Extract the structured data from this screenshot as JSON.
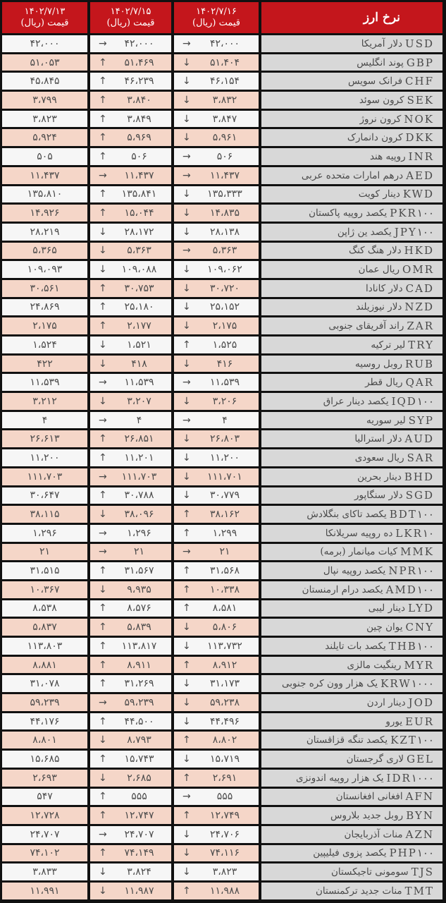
{
  "header": {
    "title": "نرخ ارز",
    "columns": [
      {
        "date": "۱۴۰۲/۷/۱۳",
        "unit": "قیمت (ریال)"
      },
      {
        "date": "۱۴۰۲/۷/۱۵",
        "unit": "قیمت (ریال)"
      },
      {
        "date": "۱۴۰۲/۷/۱۶",
        "unit": "قیمت (ریال)"
      }
    ]
  },
  "colors": {
    "header": "#c4161c",
    "row_alt": "#f5d6c8",
    "row": "#f6f6f6",
    "name_col": "#d8d8d8"
  },
  "rows": [
    {
      "code": "USD",
      "name": "دلار آمریکا",
      "d16": "۴۲،۰۰۰",
      "a16": "→",
      "d15": "۴۲،۰۰۰",
      "a15": "→",
      "d13": "۴۲،۰۰۰"
    },
    {
      "code": "GBP",
      "name": "پوند انگلیس",
      "d16": "۵۱،۴۰۴",
      "a16": "↓",
      "d15": "۵۱،۴۶۹",
      "a15": "↑",
      "d13": "۵۱،۰۵۳"
    },
    {
      "code": "CHF",
      "name": "فرانک سویس",
      "d16": "۴۶،۱۵۴",
      "a16": "↓",
      "d15": "۴۶،۲۳۹",
      "a15": "↑",
      "d13": "۴۵،۸۴۵"
    },
    {
      "code": "SEK",
      "name": "کرون سوئد",
      "d16": "۳،۸۳۲",
      "a16": "↓",
      "d15": "۳،۸۴۰",
      "a15": "↑",
      "d13": "۳،۷۹۹"
    },
    {
      "code": "NOK",
      "name": "کرون نروژ",
      "d16": "۳،۸۴۷",
      "a16": "↓",
      "d15": "۳،۸۴۹",
      "a15": "↑",
      "d13": "۳،۸۲۳"
    },
    {
      "code": "DKK",
      "name": "کرون دانمارک",
      "d16": "۵،۹۶۱",
      "a16": "↓",
      "d15": "۵،۹۶۹",
      "a15": "↑",
      "d13": "۵،۹۲۴"
    },
    {
      "code": "INR",
      "name": "روپیه هند",
      "d16": "۵۰۶",
      "a16": "→",
      "d15": "۵۰۶",
      "a15": "↑",
      "d13": "۵۰۵"
    },
    {
      "code": "AED",
      "name": "درهم امارات متحده عربی",
      "d16": "۱۱،۴۳۷",
      "a16": "→",
      "d15": "۱۱،۴۳۷",
      "a15": "→",
      "d13": "۱۱،۴۳۷"
    },
    {
      "code": "KWD",
      "name": "دینار کویت",
      "d16": "۱۳۵،۳۳۳",
      "a16": "↓",
      "d15": "۱۳۵،۸۴۱",
      "a15": "↑",
      "d13": "۱۳۵،۸۱۰"
    },
    {
      "code": "PKR۱۰۰",
      "name": "یکصد روپیه پاکستان",
      "d16": "۱۴،۸۳۵",
      "a16": "↓",
      "d15": "۱۵،۰۴۴",
      "a15": "↑",
      "d13": "۱۴،۹۲۶"
    },
    {
      "code": "JPY۱۰۰",
      "name": "یکصد ین ژاپن",
      "d16": "۲۸،۱۳۸",
      "a16": "↓",
      "d15": "۲۸،۱۷۲",
      "a15": "↓",
      "d13": "۲۸،۲۱۹"
    },
    {
      "code": "HKD",
      "name": "دلار هنگ کنگ",
      "d16": "۵،۳۶۳",
      "a16": "→",
      "d15": "۵،۳۶۳",
      "a15": "↓",
      "d13": "۵،۳۶۵"
    },
    {
      "code": "OMR",
      "name": "ریال عمان",
      "d16": "۱۰۹،۰۶۲",
      "a16": "↓",
      "d15": "۱۰۹،۰۸۸",
      "a15": "↓",
      "d13": "۱۰۹،۰۹۳"
    },
    {
      "code": "CAD",
      "name": "دلار کانادا",
      "d16": "۳۰،۷۲۰",
      "a16": "↓",
      "d15": "۳۰،۷۵۳",
      "a15": "↑",
      "d13": "۳۰،۵۶۱"
    },
    {
      "code": "NZD",
      "name": "دلار نیوزیلند",
      "d16": "۲۵،۱۵۲",
      "a16": "↓",
      "d15": "۲۵،۱۸۰",
      "a15": "↑",
      "d13": "۲۴،۸۶۹"
    },
    {
      "code": "ZAR",
      "name": "راند آفریقای جنوبی",
      "d16": "۲،۱۷۵",
      "a16": "↓",
      "d15": "۲،۱۷۷",
      "a15": "↑",
      "d13": "۲،۱۷۵"
    },
    {
      "code": "TRY",
      "name": "لیر ترکیه",
      "d16": "۱،۵۲۵",
      "a16": "↑",
      "d15": "۱،۵۲۱",
      "a15": "↓",
      "d13": "۱،۵۲۴"
    },
    {
      "code": "RUB",
      "name": "روبل روسیه",
      "d16": "۴۱۶",
      "a16": "↓",
      "d15": "۴۱۸",
      "a15": "↓",
      "d13": "۴۲۲"
    },
    {
      "code": "QAR",
      "name": "ریال قطر",
      "d16": "۱۱،۵۳۹",
      "a16": "→",
      "d15": "۱۱،۵۳۹",
      "a15": "→",
      "d13": "۱۱،۵۳۹"
    },
    {
      "code": "IQD۱۰۰",
      "name": "یکصد دینار عراق",
      "d16": "۳،۲۰۶",
      "a16": "↓",
      "d15": "۳،۲۰۷",
      "a15": "↓",
      "d13": "۳،۲۱۲"
    },
    {
      "code": "SYP",
      "name": "لیر سوریه",
      "d16": "۴",
      "a16": "→",
      "d15": "۴",
      "a15": "→",
      "d13": "۴"
    },
    {
      "code": "AUD",
      "name": "دلار استرالیا",
      "d16": "۲۶،۸۰۳",
      "a16": "↓",
      "d15": "۲۶،۸۵۱",
      "a15": "↑",
      "d13": "۲۶،۶۱۳"
    },
    {
      "code": "SAR",
      "name": "ریال سعودی",
      "d16": "۱۱،۲۰۰",
      "a16": "↓",
      "d15": "۱۱،۲۰۱",
      "a15": "↑",
      "d13": "۱۱،۲۰۰"
    },
    {
      "code": "BHD",
      "name": "دینار بحرین",
      "d16": "۱۱۱،۷۰۱",
      "a16": "↓",
      "d15": "۱۱۱،۷۰۳",
      "a15": "→",
      "d13": "۱۱۱،۷۰۳"
    },
    {
      "code": "SGD",
      "name": "دلار سنگاپور",
      "d16": "۳۰،۷۷۹",
      "a16": "↓",
      "d15": "۳۰،۷۸۸",
      "a15": "↑",
      "d13": "۳۰،۶۴۷"
    },
    {
      "code": "BDT۱۰۰",
      "name": "یکصد تاکای بنگلادش",
      "d16": "۳۸،۱۶۲",
      "a16": "↑",
      "d15": "۳۸،۰۹۶",
      "a15": "↓",
      "d13": "۳۸،۱۱۵"
    },
    {
      "code": "LKR۱۰",
      "name": "ده روپیه سریلانکا",
      "d16": "۱،۲۹۹",
      "a16": "↑",
      "d15": "۱،۲۹۶",
      "a15": "→",
      "d13": "۱،۲۹۶"
    },
    {
      "code": "MMK",
      "name": "کیات میانمار (برمه)",
      "d16": "۲۱",
      "a16": "→",
      "d15": "۲۱",
      "a15": "→",
      "d13": "۲۱"
    },
    {
      "code": "NPR۱۰۰",
      "name": "یکصد روپیه نپال",
      "d16": "۳۱،۵۶۸",
      "a16": "↑",
      "d15": "۳۱،۵۶۷",
      "a15": "↑",
      "d13": "۳۱،۵۱۵"
    },
    {
      "code": "AMD۱۰۰",
      "name": "یکصد درام ارمنستان",
      "d16": "۱۰،۳۳۸",
      "a16": "↑",
      "d15": "۹،۹۳۵",
      "a15": "↓",
      "d13": "۱۰،۳۶۷"
    },
    {
      "code": "LYD",
      "name": "دینار لیبی",
      "d16": "۸،۵۸۱",
      "a16": "↑",
      "d15": "۸،۵۷۶",
      "a15": "↑",
      "d13": "۸،۵۳۸"
    },
    {
      "code": "CNY",
      "name": "یوان چین",
      "d16": "۵،۸۰۶",
      "a16": "↓",
      "d15": "۵،۸۳۹",
      "a15": "↑",
      "d13": "۵،۸۳۷"
    },
    {
      "code": "THB۱۰۰",
      "name": "یکصد بات تایلند",
      "d16": "۱۱۳،۷۳۲",
      "a16": "↓",
      "d15": "۱۱۳،۸۱۷",
      "a15": "↑",
      "d13": "۱۱۳،۸۰۳"
    },
    {
      "code": "MYR",
      "name": "رینگیت مالزی",
      "d16": "۸،۹۱۲",
      "a16": "↑",
      "d15": "۸،۹۱۱",
      "a15": "↑",
      "d13": "۸،۸۸۱"
    },
    {
      "code": "KRW۱۰۰۰",
      "name": "یک هزار وون کره جنوبی",
      "d16": "۳۱،۱۷۳",
      "a16": "↓",
      "d15": "۳۱،۲۶۹",
      "a15": "↑",
      "d13": "۳۱،۰۷۸"
    },
    {
      "code": "JOD",
      "name": "دینار اردن",
      "d16": "۵۹،۲۳۸",
      "a16": "↓",
      "d15": "۵۹،۲۳۹",
      "a15": "→",
      "d13": "۵۹،۲۳۹"
    },
    {
      "code": "EUR",
      "name": "یورو",
      "d16": "۴۴،۴۹۶",
      "a16": "↓",
      "d15": "۴۴،۵۰۰",
      "a15": "↑",
      "d13": "۴۴،۱۷۶"
    },
    {
      "code": "KZT۱۰۰",
      "name": "یکصد تنگه قزاقستان",
      "d16": "۸،۸۰۲",
      "a16": "↑",
      "d15": "۸،۷۹۳",
      "a15": "↓",
      "d13": "۸،۸۰۱"
    },
    {
      "code": "GEL",
      "name": "لاری گرجستان",
      "d16": "۱۵،۷۱۹",
      "a16": "↓",
      "d15": "۱۵،۷۴۳",
      "a15": "↑",
      "d13": "۱۵،۶۸۵"
    },
    {
      "code": "IDR۱۰۰۰",
      "name": "یک هزار روپیه اندونزی",
      "d16": "۲،۶۹۱",
      "a16": "↑",
      "d15": "۲،۶۸۵",
      "a15": "↓",
      "d13": "۲،۶۹۳"
    },
    {
      "code": "AFN",
      "name": "افغانی افغانستان",
      "d16": "۵۵۵",
      "a16": "→",
      "d15": "۵۵۵",
      "a15": "↑",
      "d13": "۵۴۷"
    },
    {
      "code": "BYN",
      "name": "روبل جدید بلاروس",
      "d16": "۱۲،۷۴۹",
      "a16": "↑",
      "d15": "۱۲،۷۴۷",
      "a15": "↑",
      "d13": "۱۲،۷۲۸"
    },
    {
      "code": "AZN",
      "name": "منات آذربایجان",
      "d16": "۲۴،۷۰۶",
      "a16": "↓",
      "d15": "۲۴،۷۰۷",
      "a15": "→",
      "d13": "۲۴،۷۰۷"
    },
    {
      "code": "PHP۱۰۰",
      "name": "یکصد پزوی فیلیپین",
      "d16": "۷۴،۱۱۶",
      "a16": "↓",
      "d15": "۷۴،۱۴۹",
      "a15": "↑",
      "d13": "۷۴،۱۰۲"
    },
    {
      "code": "TJS",
      "name": "سومونی تاجیکستان",
      "d16": "۳،۸۲۳",
      "a16": "↓",
      "d15": "۳،۸۲۴",
      "a15": "↓",
      "d13": "۳،۸۳۳"
    },
    {
      "code": "TMT",
      "name": "منات جدید ترکمنستان",
      "d16": "۱۱،۹۸۸",
      "a16": "↑",
      "d15": "۱۱،۹۸۷",
      "a15": "↓",
      "d13": "۱۱،۹۹۱"
    }
  ]
}
